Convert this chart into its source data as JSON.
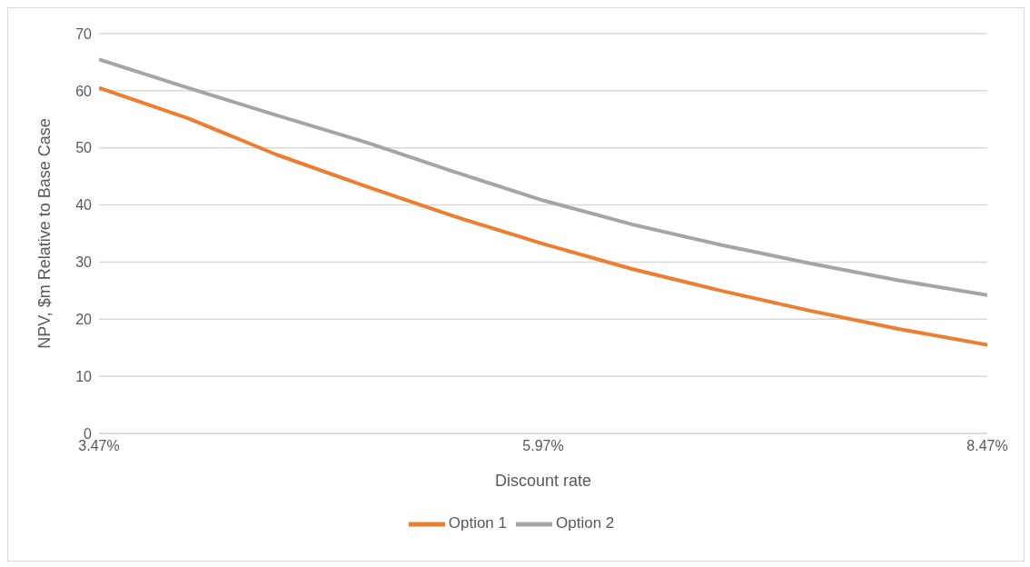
{
  "chart_data": {
    "type": "line",
    "xlabel": "Discount rate",
    "ylabel": "NPV, $m Relative to Base Case",
    "x": [
      3.47,
      3.97,
      4.47,
      4.97,
      5.47,
      5.97,
      6.47,
      6.97,
      7.47,
      7.97,
      8.47
    ],
    "series": [
      {
        "name": "Option 1",
        "color": "#ed7d31",
        "values": [
          60.5,
          55.2,
          48.8,
          43.3,
          38.0,
          33.2,
          28.8,
          25.0,
          21.5,
          18.3,
          15.5
        ]
      },
      {
        "name": "Option 2",
        "color": "#a5a5a5",
        "values": [
          65.5,
          60.5,
          55.7,
          51.0,
          45.8,
          40.8,
          36.6,
          33.0,
          29.8,
          26.8,
          24.2
        ]
      }
    ],
    "xlim": [
      3.47,
      8.47
    ],
    "xticks": [
      {
        "value": 3.47,
        "label": "3.47%"
      },
      {
        "value": 5.97,
        "label": "5.97%"
      },
      {
        "value": 8.47,
        "label": "8.47%"
      }
    ],
    "ylim": [
      0,
      70
    ],
    "yticks": [
      0,
      10,
      20,
      30,
      40,
      50,
      60,
      70
    ],
    "grid": "y",
    "legend": "bottom",
    "marker": "none",
    "line_style": "solid"
  }
}
